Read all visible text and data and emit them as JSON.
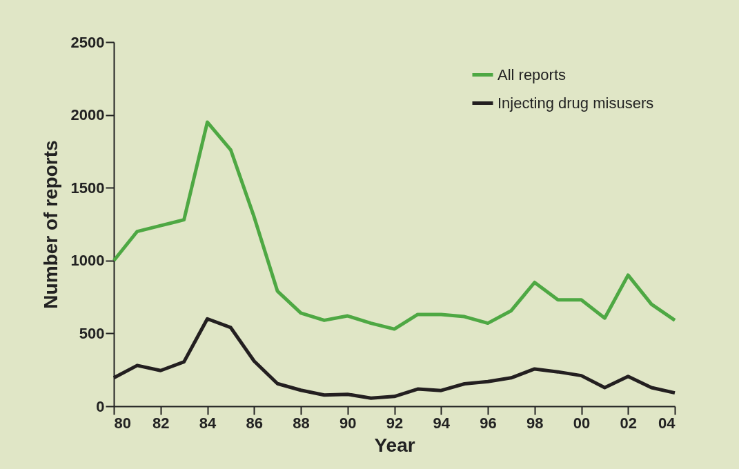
{
  "chart_data": {
    "type": "line",
    "xlabel": "Year",
    "ylabel": "Number of reports",
    "x": [
      1980,
      1981,
      1982,
      1983,
      1984,
      1985,
      1986,
      1987,
      1988,
      1989,
      1990,
      1991,
      1992,
      1993,
      1994,
      1995,
      1996,
      1997,
      1998,
      1999,
      2000,
      2001,
      2002,
      2003,
      2004
    ],
    "series": [
      {
        "name": "All reports",
        "color": "#4ea843",
        "values": [
          1000,
          1200,
          1240,
          1280,
          1950,
          1760,
          1300,
          790,
          640,
          590,
          620,
          570,
          530,
          630,
          630,
          615,
          570,
          656,
          850,
          730,
          730,
          605,
          900,
          700,
          590
        ]
      },
      {
        "name": "Injecting drug misusers",
        "color": "#231f20",
        "values": [
          195,
          280,
          245,
          305,
          600,
          540,
          310,
          155,
          110,
          77,
          82,
          56,
          67,
          118,
          108,
          154,
          169,
          195,
          256,
          236,
          210,
          128,
          205,
          128,
          92
        ]
      }
    ],
    "xlim": [
      1980,
      2004
    ],
    "ylim": [
      0,
      2500
    ],
    "xticks": [
      {
        "value": 1980,
        "label": "80"
      },
      {
        "value": 1982,
        "label": "82"
      },
      {
        "value": 1984,
        "label": "84"
      },
      {
        "value": 1986,
        "label": "86"
      },
      {
        "value": 1988,
        "label": "88"
      },
      {
        "value": 1990,
        "label": "90"
      },
      {
        "value": 1992,
        "label": "92"
      },
      {
        "value": 1994,
        "label": "94"
      },
      {
        "value": 1996,
        "label": "96"
      },
      {
        "value": 1998,
        "label": "98"
      },
      {
        "value": 2000,
        "label": "00"
      },
      {
        "value": 2002,
        "label": "02"
      },
      {
        "value": 2004,
        "label": "04"
      }
    ],
    "yticks": [
      0,
      500,
      1000,
      1500,
      2000,
      2500
    ],
    "grid": false,
    "legend": "top right",
    "marker": "none",
    "line_style": "solid"
  }
}
